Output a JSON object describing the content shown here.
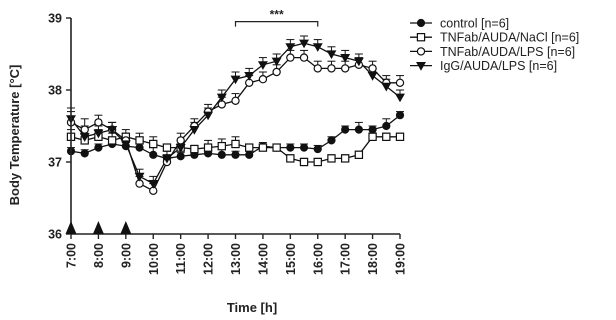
{
  "chart_data": {
    "type": "line",
    "ylabel": "Body Temperature [°C]",
    "xlabel": "Time [h]",
    "ylim": [
      36,
      39
    ],
    "xlim": [
      7,
      19
    ],
    "y_ticks": [
      {
        "value": 36,
        "label": "36"
      },
      {
        "value": 37,
        "label": "37"
      },
      {
        "value": 38,
        "label": "38"
      },
      {
        "value": 39,
        "label": "39"
      }
    ],
    "x_ticks": [
      {
        "value": 7,
        "label": "7:00"
      },
      {
        "value": 8,
        "label": "8:00"
      },
      {
        "value": 9,
        "label": "9:00"
      },
      {
        "value": 10,
        "label": "10:00"
      },
      {
        "value": 11,
        "label": "11:00"
      },
      {
        "value": 12,
        "label": "12:00"
      },
      {
        "value": 13,
        "label": "13:00"
      },
      {
        "value": 14,
        "label": "14:00"
      },
      {
        "value": 15,
        "label": "15:00"
      },
      {
        "value": 16,
        "label": "16:00"
      },
      {
        "value": 17,
        "label": "17:00"
      },
      {
        "value": 18,
        "label": "18:00"
      },
      {
        "value": 19,
        "label": "19:00"
      }
    ],
    "injections": [
      7,
      8,
      9
    ],
    "significance": {
      "x_start": 13,
      "x_end": 16,
      "y": 38.95,
      "label": "***"
    },
    "grid": false,
    "legend": "top-right",
    "x": [
      7,
      7.5,
      8,
      8.5,
      9,
      9.5,
      10,
      10.5,
      11,
      11.5,
      12,
      12.5,
      13,
      13.5,
      14,
      14.5,
      15,
      15.5,
      16,
      16.5,
      17,
      17.5,
      18,
      18.5,
      19
    ],
    "series": [
      {
        "name": "control [n=6]",
        "marker": "circle-filled",
        "values": [
          37.15,
          37.12,
          37.2,
          37.25,
          37.22,
          37.2,
          37.1,
          37.05,
          37.08,
          37.1,
          37.12,
          37.1,
          37.1,
          37.1,
          37.22,
          37.2,
          37.2,
          37.2,
          37.18,
          37.3,
          37.45,
          37.45,
          37.45,
          37.5,
          37.65
        ],
        "errors": [
          0.05,
          0.05,
          0.05,
          0.05,
          0.05,
          0.1,
          0.1,
          0.05,
          0.05,
          0.05,
          0.05,
          0.1,
          0.05,
          0.05,
          0.05,
          0.05,
          0.05,
          0.05,
          0.05,
          0.05,
          0.05,
          0.1,
          0.05,
          0.1,
          0.05
        ]
      },
      {
        "name": "TNFab/AUDA/NaCl [n=6]",
        "marker": "square-open",
        "values": [
          37.35,
          37.3,
          37.35,
          37.3,
          37.35,
          37.3,
          37.25,
          37.2,
          37.2,
          37.18,
          37.2,
          37.22,
          37.25,
          37.2,
          37.2,
          37.2,
          37.05,
          37.0,
          37.0,
          37.05,
          37.05,
          37.1,
          37.35,
          37.35,
          37.35
        ],
        "errors": [
          0.1,
          0.1,
          0.1,
          0.1,
          0.1,
          0.1,
          0.1,
          0.05,
          0.05,
          0.05,
          0.1,
          0.1,
          0.1,
          0.05,
          0.05,
          0.05,
          0.05,
          0.05,
          0.05,
          0.05,
          0.05,
          0.05,
          0.05,
          0.05,
          0.05
        ]
      },
      {
        "name": "TNFab/AUDA/LPS [n=6]",
        "marker": "circle-open",
        "values": [
          37.55,
          37.45,
          37.55,
          37.45,
          37.3,
          36.7,
          36.6,
          37.0,
          37.3,
          37.5,
          37.7,
          37.8,
          37.85,
          38.1,
          38.15,
          38.25,
          38.45,
          38.45,
          38.3,
          38.3,
          38.3,
          38.35,
          38.3,
          38.1,
          38.1
        ],
        "errors": [
          0.15,
          0.15,
          0.1,
          0.1,
          0.1,
          0.1,
          0.1,
          0.1,
          0.1,
          0.1,
          0.1,
          0.1,
          0.1,
          0.1,
          0.1,
          0.1,
          0.1,
          0.1,
          0.1,
          0.1,
          0.1,
          0.1,
          0.1,
          0.1,
          0.1
        ]
      },
      {
        "name": "IgG/AUDA/LPS [n=6]",
        "marker": "triangle-down-filled",
        "values": [
          37.6,
          37.35,
          37.4,
          37.45,
          37.25,
          36.8,
          36.7,
          37.05,
          37.2,
          37.45,
          37.65,
          37.9,
          38.15,
          38.2,
          38.35,
          38.4,
          38.6,
          38.65,
          38.6,
          38.5,
          38.45,
          38.4,
          38.2,
          38.05,
          37.9
        ],
        "errors": [
          0.15,
          0.15,
          0.1,
          0.1,
          0.1,
          0.1,
          0.1,
          0.1,
          0.1,
          0.1,
          0.1,
          0.1,
          0.1,
          0.1,
          0.1,
          0.1,
          0.1,
          0.1,
          0.1,
          0.1,
          0.1,
          0.1,
          0.1,
          0.1,
          0.1
        ]
      }
    ]
  }
}
